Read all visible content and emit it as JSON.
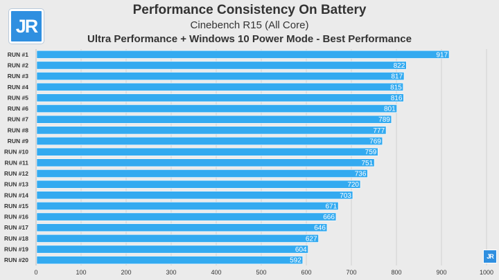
{
  "brand": {
    "logo_text": "JR",
    "accent": "#2f8fe0"
  },
  "chart_data": {
    "type": "bar",
    "orientation": "horizontal",
    "title": "Performance Consistency On Battery",
    "subtitle": "Cinebench R15 (All Core)",
    "subtitle2": "Ultra Performance + Windows 10 Power Mode - Best Performance",
    "categories": [
      "RUN #1",
      "RUN #2",
      "RUN #3",
      "RUN #4",
      "RUN #5",
      "RUN #6",
      "RUN #7",
      "RUN #8",
      "RUN #9",
      "RUN #10",
      "RUN #11",
      "RUN #12",
      "RUN #13",
      "RUN #14",
      "RUN #15",
      "RUN #16",
      "RUN #17",
      "RUN #18",
      "RUN #19",
      "RUN #20"
    ],
    "values": [
      917,
      822,
      817,
      815,
      816,
      801,
      789,
      777,
      769,
      759,
      751,
      736,
      720,
      703,
      671,
      666,
      646,
      627,
      604,
      592
    ],
    "xlim": [
      0,
      1000
    ],
    "xticks": [
      0,
      100,
      200,
      300,
      400,
      500,
      600,
      700,
      800,
      900,
      1000
    ],
    "grid": true,
    "bar_color": "#33aaf0",
    "label_color": "#ffffff"
  }
}
